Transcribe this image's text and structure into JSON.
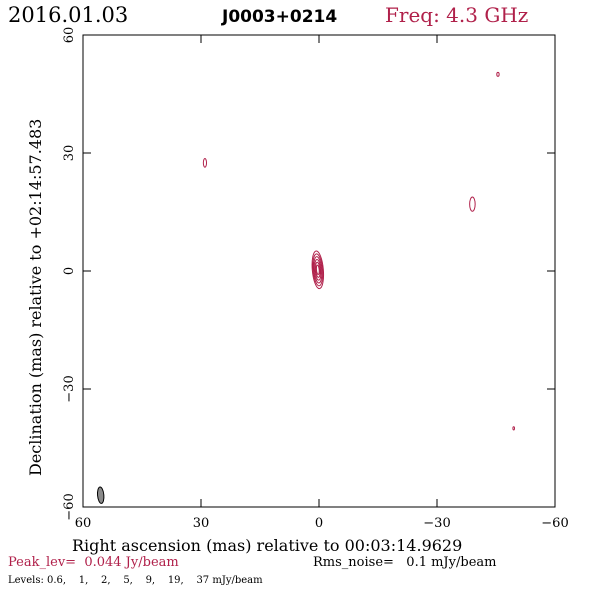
{
  "header": {
    "date": "2016.01.03",
    "source": "J0003+0214",
    "freq": "Freq: 4.3 GHz"
  },
  "footer": {
    "peak": "Peak_lev=  0.044 Jy/beam",
    "rms": "Rms_noise=   0.1 mJy/beam",
    "levels": "Levels: 0.6,    1,    2,    5,    9,    19,    37 mJy/beam"
  },
  "colors": {
    "accent": "#b0204a",
    "beam_fill": "#8a8a8a",
    "frame": "#000000"
  },
  "chart_data": {
    "type": "contour",
    "xlabel": "Right ascension (mas) relative to 00:03:14.9629",
    "ylabel": "Declination (mas) relative to +02:14:57.483",
    "xlim": [
      60,
      -60
    ],
    "ylim": [
      -60,
      60
    ],
    "xticks": [
      60,
      30,
      0,
      -30,
      -60
    ],
    "yticks": [
      -60,
      -30,
      0,
      30,
      60
    ],
    "xtick_labels": [
      "60",
      "30",
      "0",
      "−30",
      "−60"
    ],
    "ytick_labels": [
      "−60",
      "−30",
      "0",
      "30",
      "60"
    ],
    "contour_levels_mJy": [
      0.6,
      1,
      2,
      5,
      9,
      19,
      37
    ],
    "peak_Jy_per_beam": 0.044,
    "rms_mJy_per_beam": 0.1,
    "core": {
      "x": 0.3,
      "y": 0.3,
      "a": 4.8,
      "b": 1.4,
      "pa_deg": -5,
      "n_contours": 6
    },
    "components": [
      {
        "x": 29.0,
        "y": 27.5,
        "a": 1.1,
        "b": 0.4,
        "pa_deg": 0
      },
      {
        "x": -39.0,
        "y": 17.0,
        "a": 1.8,
        "b": 0.7,
        "pa_deg": 0
      },
      {
        "x": -45.5,
        "y": 50.0,
        "a": 0.5,
        "b": 0.3,
        "pa_deg": 0
      },
      {
        "x": -49.5,
        "y": -40.0,
        "a": 0.4,
        "b": 0.2,
        "pa_deg": 0
      }
    ],
    "beam": {
      "x": 55.5,
      "y": -57.0,
      "a": 2.1,
      "b": 0.8,
      "pa_deg": -5
    }
  }
}
